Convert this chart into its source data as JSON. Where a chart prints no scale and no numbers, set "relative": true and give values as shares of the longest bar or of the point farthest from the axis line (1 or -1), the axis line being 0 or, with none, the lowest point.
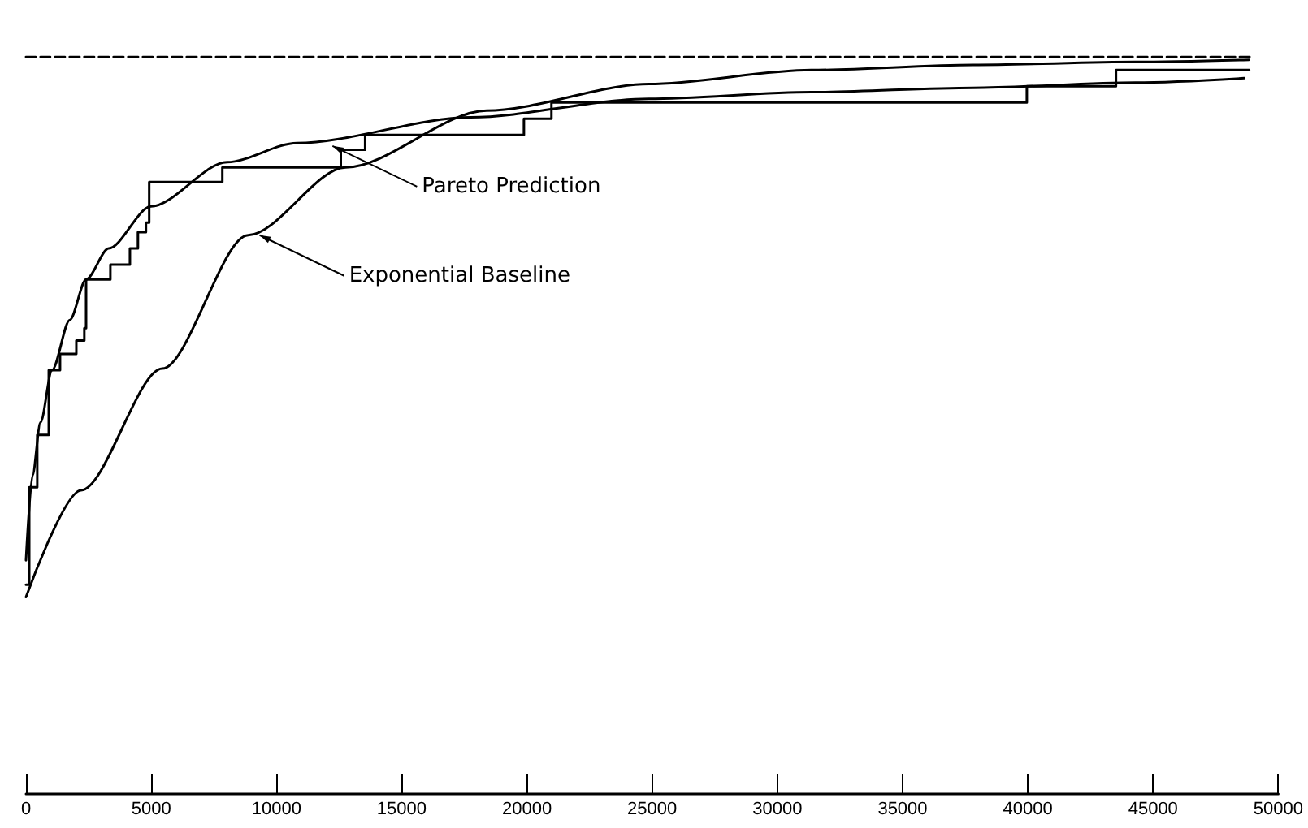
{
  "chart_data": {
    "type": "line",
    "relative": true,
    "xlim": [
      0,
      50000
    ],
    "xticks": [
      0,
      5000,
      10000,
      15000,
      20000,
      25000,
      30000,
      35000,
      40000,
      45000,
      50000
    ],
    "grid": false,
    "tick_labels": "x",
    "marker": "none",
    "series": [
      {
        "color": "#000000",
        "line_style": "dashed",
        "x": [
          0,
          49000
        ],
        "values": [
          1,
          1
        ]
      },
      {
        "type": "step",
        "color": "#000000",
        "x": [
          0,
          130,
          450,
          910,
          1360,
          2010,
          2330,
          2400,
          3370,
          4150,
          4470,
          4790,
          4920,
          7840,
          12570,
          13540,
          19880,
          20980,
          39960,
          43520,
          48840
        ],
        "values": [
          0.284,
          0.416,
          0.487,
          0.575,
          0.597,
          0.615,
          0.632,
          0.698,
          0.718,
          0.74,
          0.762,
          0.775,
          0.83,
          0.85,
          0.874,
          0.894,
          0.916,
          0.938,
          0.96,
          0.982,
          0.982
        ]
      },
      {
        "color": "#000000",
        "x": [
          0,
          260,
          580,
          1040,
          1750,
          2400,
          3300,
          4990,
          8030,
          10820,
          17750,
          24870,
          31350,
          37820,
          44300,
          48640
        ],
        "values": [
          0.317,
          0.432,
          0.504,
          0.575,
          0.643,
          0.698,
          0.74,
          0.797,
          0.857,
          0.883,
          0.918,
          0.943,
          0.952,
          0.958,
          0.965,
          0.971
        ]
      },
      {
        "color": "#000000",
        "x": [
          0,
          2200,
          5440,
          8870,
          12760,
          18390,
          24870,
          31350,
          37820,
          44300,
          48830
        ],
        "values": [
          0.267,
          0.412,
          0.577,
          0.758,
          0.85,
          0.927,
          0.963,
          0.982,
          0.989,
          0.993,
          0.996
        ]
      }
    ],
    "annotations": [
      {
        "text": "Pareto Prediction",
        "x": 12240,
        "y": 0.879
      },
      {
        "text": "Exponential Baseline",
        "x": 9330,
        "y": 0.758
      }
    ]
  }
}
